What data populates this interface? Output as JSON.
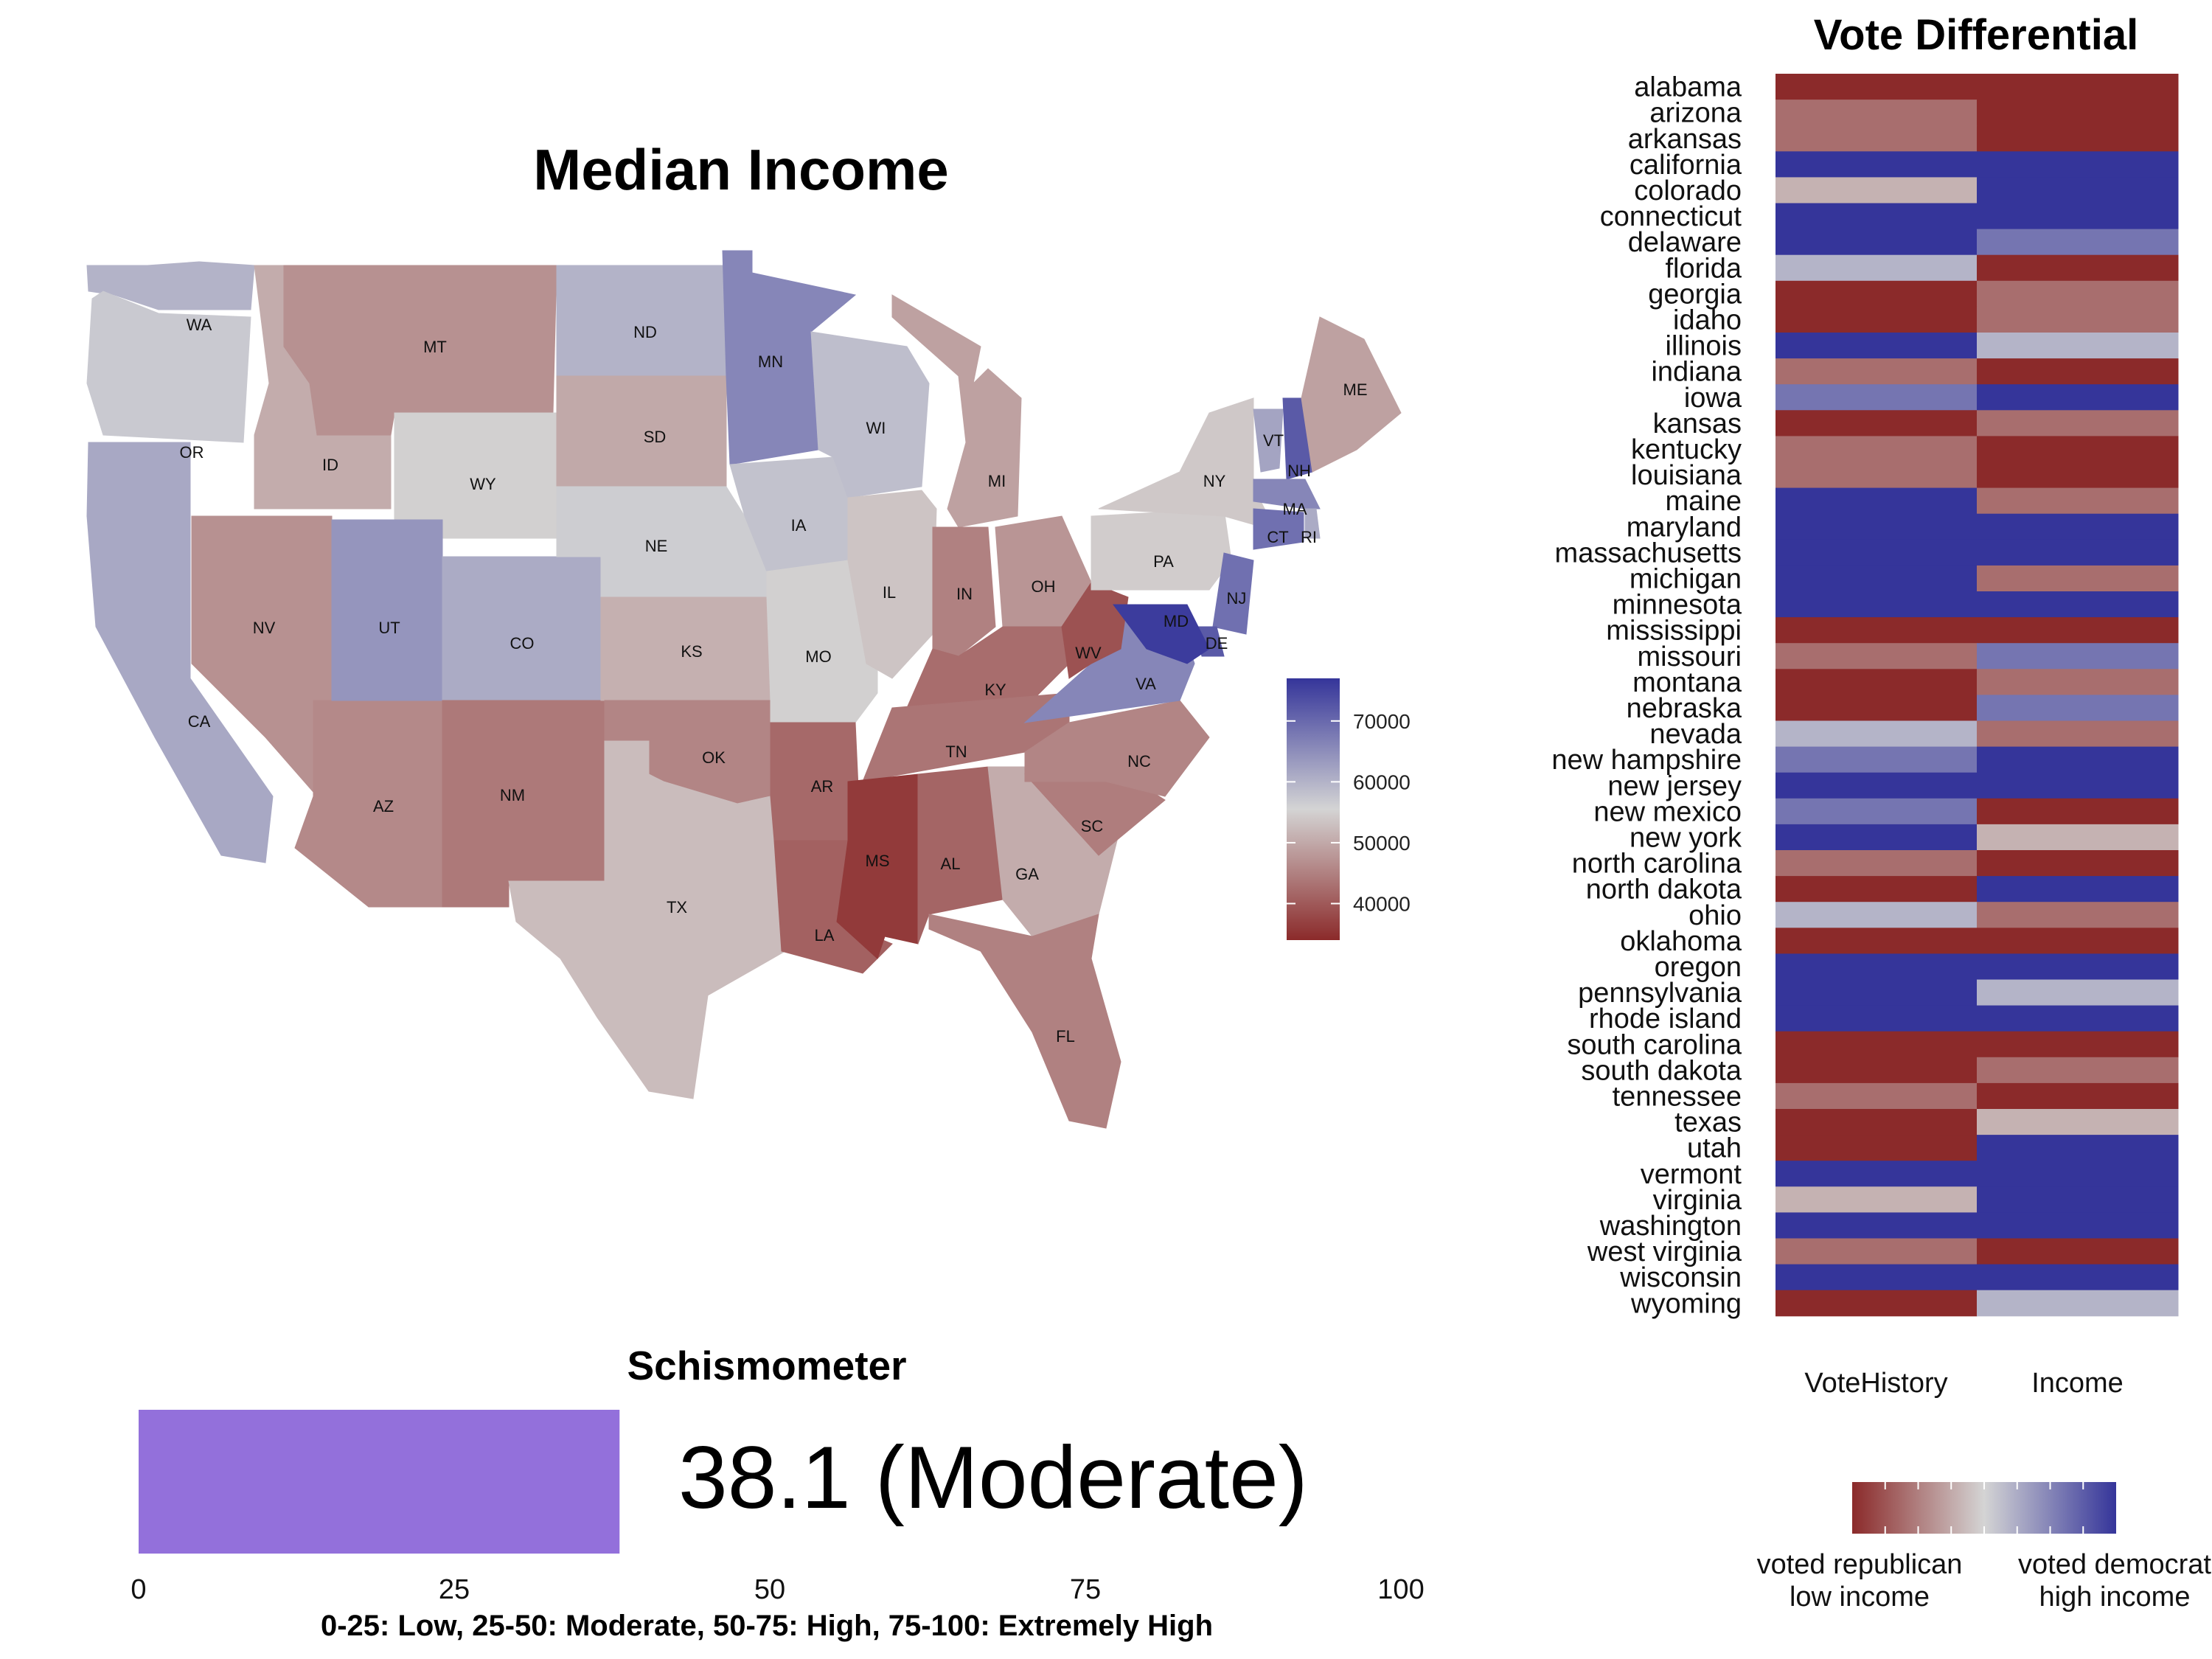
{
  "palette": {
    "low": "#8b2a2a",
    "mid": "#d4d4d4",
    "high": "#35359a"
  },
  "map": {
    "title": "Median Income",
    "legend_ticks": [
      40000,
      50000,
      60000,
      70000
    ],
    "legend_range": [
      34000,
      77000
    ],
    "states": [
      {
        "abbr": "WA",
        "value": 60000
      },
      {
        "abbr": "OR",
        "value": 57000
      },
      {
        "abbr": "CA",
        "value": 61500
      },
      {
        "abbr": "ID",
        "value": 50500
      },
      {
        "abbr": "NV",
        "value": 47000
      },
      {
        "abbr": "AZ",
        "value": 46000
      },
      {
        "abbr": "MT",
        "value": 47000
      },
      {
        "abbr": "WY",
        "value": 55000
      },
      {
        "abbr": "UT",
        "value": 64000
      },
      {
        "abbr": "CO",
        "value": 61000
      },
      {
        "abbr": "NM",
        "value": 44000
      },
      {
        "abbr": "ND",
        "value": 60000
      },
      {
        "abbr": "SD",
        "value": 50000
      },
      {
        "abbr": "NE",
        "value": 56500
      },
      {
        "abbr": "KS",
        "value": 51000
      },
      {
        "abbr": "OK",
        "value": 45500
      },
      {
        "abbr": "TX",
        "value": 52500
      },
      {
        "abbr": "MN",
        "value": 66000
      },
      {
        "abbr": "IA",
        "value": 58000
      },
      {
        "abbr": "MO",
        "value": 55000
      },
      {
        "abbr": "AR",
        "value": 42000
      },
      {
        "abbr": "LA",
        "value": 41000
      },
      {
        "abbr": "WI",
        "value": 58500
      },
      {
        "abbr": "IL",
        "value": 53500
      },
      {
        "abbr": "MI",
        "value": 49000
      },
      {
        "abbr": "IN",
        "value": 45000
      },
      {
        "abbr": "OH",
        "value": 47500
      },
      {
        "abbr": "KY",
        "value": 42500
      },
      {
        "abbr": "TN",
        "value": 43500
      },
      {
        "abbr": "MS",
        "value": 36000
      },
      {
        "abbr": "AL",
        "value": 41500
      },
      {
        "abbr": "GA",
        "value": 50500
      },
      {
        "abbr": "FL",
        "value": 45000
      },
      {
        "abbr": "SC",
        "value": 44500
      },
      {
        "abbr": "NC",
        "value": 45500
      },
      {
        "abbr": "VA",
        "value": 66000
      },
      {
        "abbr": "WV",
        "value": 39000
      },
      {
        "abbr": "PA",
        "value": 54500
      },
      {
        "abbr": "NY",
        "value": 54000
      },
      {
        "abbr": "VT",
        "value": 62000
      },
      {
        "abbr": "NH",
        "value": 72000
      },
      {
        "abbr": "ME",
        "value": 49000
      },
      {
        "abbr": "MA",
        "value": 66000
      },
      {
        "abbr": "RI",
        "value": 61000
      },
      {
        "abbr": "CT",
        "value": 69000
      },
      {
        "abbr": "NJ",
        "value": 69000
      },
      {
        "abbr": "DE",
        "value": 72000
      },
      {
        "abbr": "MD",
        "value": 76000
      }
    ]
  },
  "chart_data": {
    "type": "heatmap",
    "title": "Vote Differential",
    "columns": [
      "VoteHistory",
      "Income"
    ],
    "legend": {
      "left": "voted republican\nlow income",
      "right": "voted democrat\nhigh income"
    },
    "rows": [
      {
        "state": "alabama",
        "values": [
          -1.0,
          -1.0
        ]
      },
      {
        "state": "arizona",
        "values": [
          -0.6,
          -1.0
        ]
      },
      {
        "state": "arkansas",
        "values": [
          -0.6,
          -1.0
        ]
      },
      {
        "state": "california",
        "values": [
          1.0,
          1.0
        ]
      },
      {
        "state": "colorado",
        "values": [
          -0.2,
          1.0
        ]
      },
      {
        "state": "connecticut",
        "values": [
          1.0,
          1.0
        ]
      },
      {
        "state": "delaware",
        "values": [
          1.0,
          0.6
        ]
      },
      {
        "state": "florida",
        "values": [
          0.2,
          -1.0
        ]
      },
      {
        "state": "georgia",
        "values": [
          -1.0,
          -0.6
        ]
      },
      {
        "state": "idaho",
        "values": [
          -1.0,
          -0.6
        ]
      },
      {
        "state": "illinois",
        "values": [
          1.0,
          0.2
        ]
      },
      {
        "state": "indiana",
        "values": [
          -0.6,
          -1.0
        ]
      },
      {
        "state": "iowa",
        "values": [
          0.6,
          1.0
        ]
      },
      {
        "state": "kansas",
        "values": [
          -1.0,
          -0.6
        ]
      },
      {
        "state": "kentucky",
        "values": [
          -0.6,
          -1.0
        ]
      },
      {
        "state": "louisiana",
        "values": [
          -0.6,
          -1.0
        ]
      },
      {
        "state": "maine",
        "values": [
          1.0,
          -0.6
        ]
      },
      {
        "state": "maryland",
        "values": [
          1.0,
          1.0
        ]
      },
      {
        "state": "massachusetts",
        "values": [
          1.0,
          1.0
        ]
      },
      {
        "state": "michigan",
        "values": [
          1.0,
          -0.6
        ]
      },
      {
        "state": "minnesota",
        "values": [
          1.0,
          1.0
        ]
      },
      {
        "state": "mississippi",
        "values": [
          -1.0,
          -1.0
        ]
      },
      {
        "state": "missouri",
        "values": [
          -0.6,
          0.6
        ]
      },
      {
        "state": "montana",
        "values": [
          -1.0,
          -0.6
        ]
      },
      {
        "state": "nebraska",
        "values": [
          -1.0,
          0.6
        ]
      },
      {
        "state": "nevada",
        "values": [
          0.2,
          -0.6
        ]
      },
      {
        "state": "new hampshire",
        "values": [
          0.6,
          1.0
        ]
      },
      {
        "state": "new jersey",
        "values": [
          1.0,
          1.0
        ]
      },
      {
        "state": "new mexico",
        "values": [
          0.6,
          -1.0
        ]
      },
      {
        "state": "new york",
        "values": [
          1.0,
          -0.2
        ]
      },
      {
        "state": "north carolina",
        "values": [
          -0.6,
          -1.0
        ]
      },
      {
        "state": "north dakota",
        "values": [
          -1.0,
          1.0
        ]
      },
      {
        "state": "ohio",
        "values": [
          0.2,
          -0.6
        ]
      },
      {
        "state": "oklahoma",
        "values": [
          -1.0,
          -1.0
        ]
      },
      {
        "state": "oregon",
        "values": [
          1.0,
          1.0
        ]
      },
      {
        "state": "pennsylvania",
        "values": [
          1.0,
          0.2
        ]
      },
      {
        "state": "rhode island",
        "values": [
          1.0,
          1.0
        ]
      },
      {
        "state": "south carolina",
        "values": [
          -1.0,
          -1.0
        ]
      },
      {
        "state": "south dakota",
        "values": [
          -1.0,
          -0.6
        ]
      },
      {
        "state": "tennessee",
        "values": [
          -0.6,
          -1.0
        ]
      },
      {
        "state": "texas",
        "values": [
          -1.0,
          -0.2
        ]
      },
      {
        "state": "utah",
        "values": [
          -1.0,
          1.0
        ]
      },
      {
        "state": "vermont",
        "values": [
          1.0,
          1.0
        ]
      },
      {
        "state": "virginia",
        "values": [
          -0.2,
          1.0
        ]
      },
      {
        "state": "washington",
        "values": [
          1.0,
          1.0
        ]
      },
      {
        "state": "west virginia",
        "values": [
          -0.6,
          -1.0
        ]
      },
      {
        "state": "wisconsin",
        "values": [
          1.0,
          1.0
        ]
      },
      {
        "state": "wyoming",
        "values": [
          -1.0,
          0.2
        ]
      }
    ]
  },
  "schismometer": {
    "title": "Schismometer",
    "value": 38.1,
    "value_text": "38.1 (Moderate)",
    "bar_color": "#9370db",
    "range": [
      0,
      100
    ],
    "ticks": [
      "0",
      "25",
      "50",
      "75",
      "100"
    ],
    "caption": "0-25: Low, 25-50: Moderate, 50-75: High, 75-100: Extremely High"
  }
}
